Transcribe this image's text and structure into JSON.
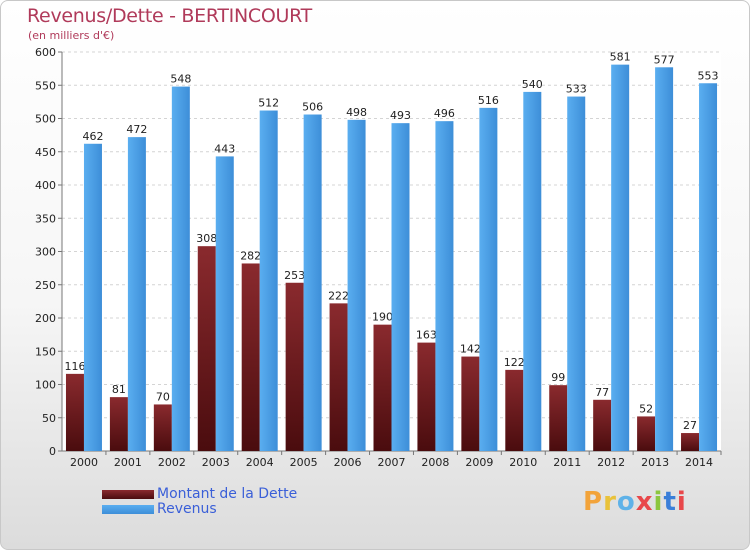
{
  "chart_data": {
    "type": "bar",
    "title": "Revenus/Dette - BERTINCOURT",
    "subtitle": "(en milliers d'€)",
    "xlabel": "",
    "ylabel": "",
    "ylim": [
      0,
      600
    ],
    "yticks": [
      0,
      50,
      100,
      150,
      200,
      250,
      300,
      350,
      400,
      450,
      500,
      550,
      600
    ],
    "grid": true,
    "legend_position": "bottom-left",
    "categories": [
      "2000",
      "2001",
      "2002",
      "2003",
      "2004",
      "2005",
      "2006",
      "2007",
      "2008",
      "2009",
      "2010",
      "2011",
      "2012",
      "2013",
      "2014"
    ],
    "series": [
      {
        "name": "Montant de la Dette",
        "color": "#7a1e22",
        "values": [
          116,
          81,
          70,
          308,
          282,
          253,
          222,
          190,
          163,
          142,
          122,
          99,
          77,
          52,
          27
        ]
      },
      {
        "name": "Revenus",
        "color": "#4d9ee6",
        "values": [
          462,
          472,
          548,
          443,
          512,
          506,
          498,
          493,
          496,
          516,
          540,
          533,
          581,
          577,
          553
        ]
      }
    ]
  },
  "brand": {
    "letters": [
      "P",
      "r",
      "o",
      "x",
      "i",
      "t",
      "i"
    ],
    "colors": [
      "#f2a33a",
      "#e9c23a",
      "#5fb2e8",
      "#e8474a",
      "#8cc63e",
      "#3a7fd8",
      "#e8474a"
    ]
  }
}
